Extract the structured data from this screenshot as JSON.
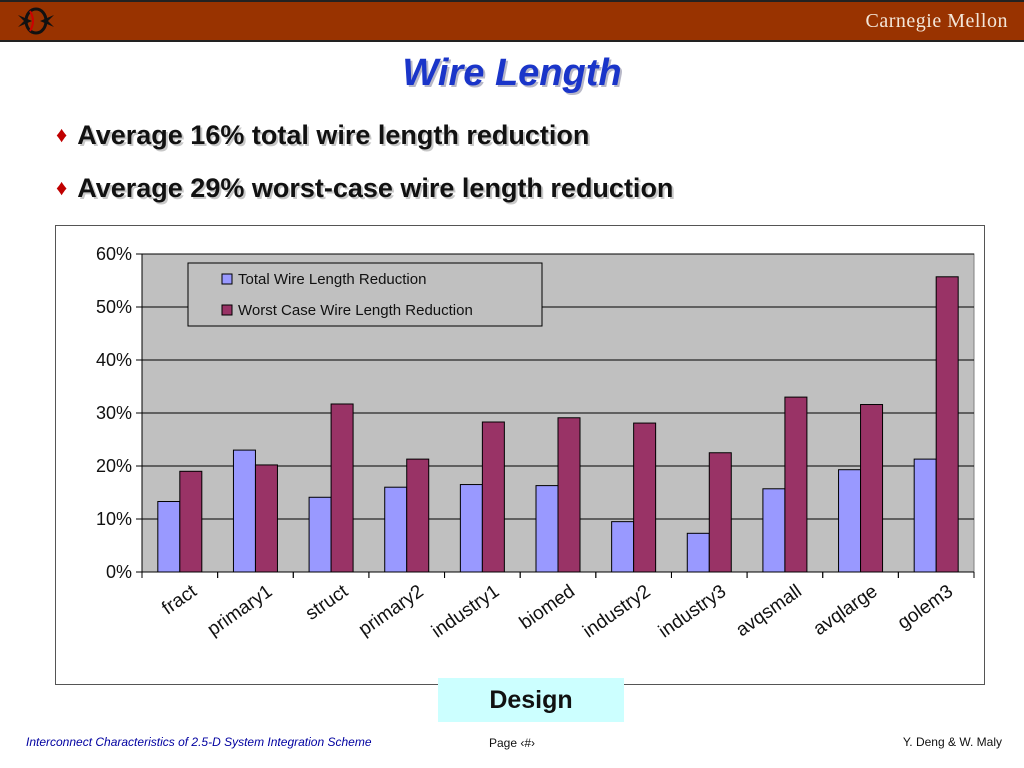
{
  "header": {
    "brand": "Carnegie Mellon",
    "bar_color": "#993300"
  },
  "slide": {
    "title": "Wire Length",
    "bullets": [
      "Average 16% total wire length reduction",
      "Average 29% worst-case wire length reduction"
    ],
    "caption": "Design"
  },
  "footer": {
    "left": "Interconnect Characteristics of 2.5-D System Integration Scheme",
    "center": "Page ‹#›",
    "right": "Y. Deng & W. Maly"
  },
  "chart_data": {
    "type": "bar",
    "categories": [
      "fract",
      "primary1",
      "struct",
      "primary2",
      "industry1",
      "biomed",
      "industry2",
      "industry3",
      "avqsmall",
      "avqlarge",
      "golem3"
    ],
    "series": [
      {
        "name": "Total Wire Length Reduction",
        "color": "#9999ff",
        "values": [
          0.133,
          0.23,
          0.141,
          0.16,
          0.165,
          0.163,
          0.095,
          0.073,
          0.157,
          0.193,
          0.213
        ]
      },
      {
        "name": "Worst Case Wire Length Reduction",
        "color": "#993366",
        "values": [
          0.19,
          0.202,
          0.317,
          0.213,
          0.283,
          0.291,
          0.281,
          0.225,
          0.33,
          0.316,
          0.557
        ]
      }
    ],
    "ylim": [
      0,
      0.6
    ],
    "yticks": [
      "0%",
      "10%",
      "20%",
      "30%",
      "40%",
      "50%",
      "60%"
    ],
    "plot_background": "#c0c0c0",
    "grid": true,
    "legend_position": "top-left"
  }
}
